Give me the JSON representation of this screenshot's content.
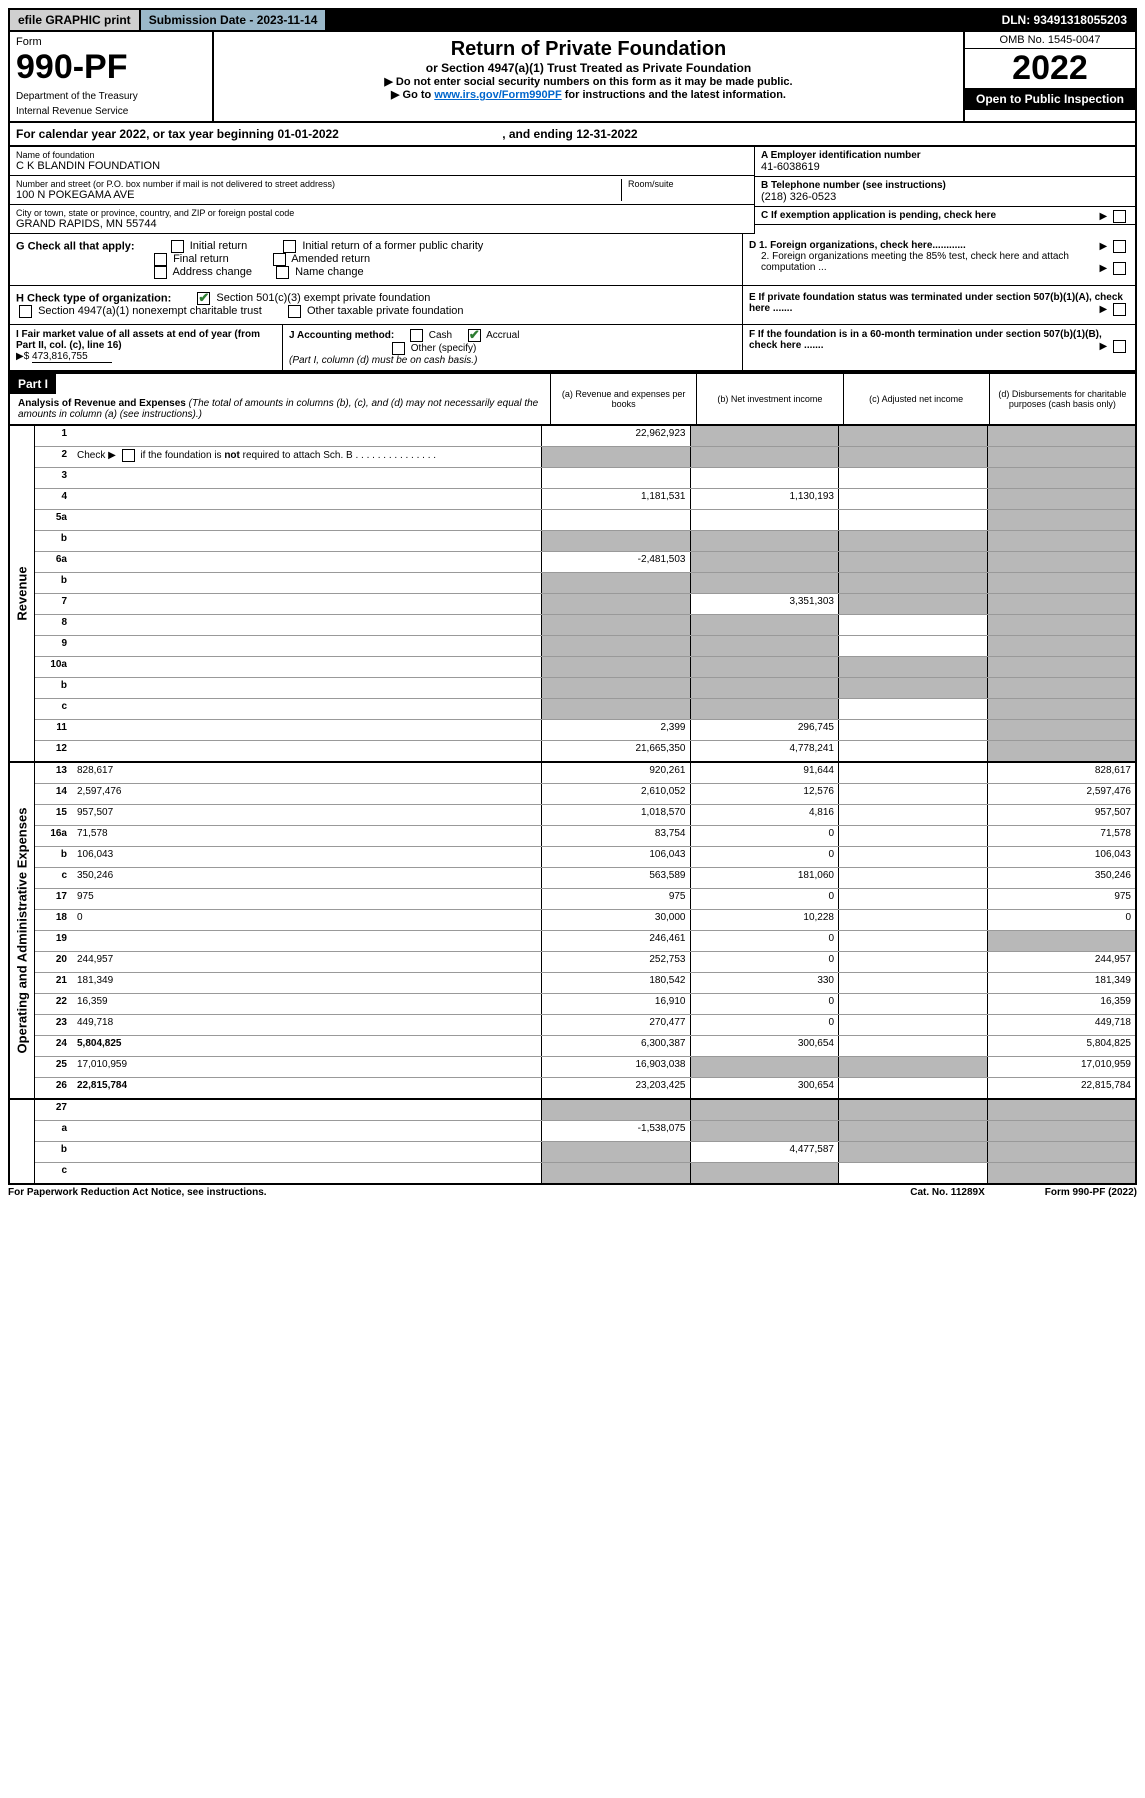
{
  "top": {
    "efile": "efile GRAPHIC print",
    "submission": "Submission Date - 2023-11-14",
    "dln": "DLN: 93491318055203"
  },
  "header": {
    "form_label": "Form",
    "form_number": "990-PF",
    "dept1": "Department of the Treasury",
    "dept2": "Internal Revenue Service",
    "title": "Return of Private Foundation",
    "subtitle": "or Section 4947(a)(1) Trust Treated as Private Foundation",
    "note1": "▶ Do not enter social security numbers on this form as it may be made public.",
    "note2_pre": "▶ Go to ",
    "note2_link": "www.irs.gov/Form990PF",
    "note2_post": " for instructions and the latest information.",
    "omb": "OMB No. 1545-0047",
    "year": "2022",
    "open": "Open to Public Inspection"
  },
  "calendar": {
    "text_pre": "For calendar year 2022, or tax year beginning ",
    "begin": "01-01-2022",
    "text_mid": " , and ending ",
    "end": "12-31-2022"
  },
  "info": {
    "name_label": "Name of foundation",
    "name": "C K BLANDIN FOUNDATION",
    "addr_label": "Number and street (or P.O. box number if mail is not delivered to street address)",
    "addr": "100 N POKEGAMA AVE",
    "room_label": "Room/suite",
    "city_label": "City or town, state or province, country, and ZIP or foreign postal code",
    "city": "GRAND RAPIDS, MN  55744",
    "ein_label": "A Employer identification number",
    "ein": "41-6038619",
    "tel_label": "B Telephone number (see instructions)",
    "tel": "(218) 326-0523",
    "c_label": "C If exemption application is pending, check here",
    "d1": "D 1. Foreign organizations, check here............",
    "d2": "2. Foreign organizations meeting the 85% test, check here and attach computation ...",
    "e_label": "E  If private foundation status was terminated under section 507(b)(1)(A), check here .......",
    "f_label": "F  If the foundation is in a 60-month termination under section 507(b)(1)(B), check here ......."
  },
  "checks": {
    "g_label": "G Check all that apply:",
    "g_opts": [
      "Initial return",
      "Initial return of a former public charity",
      "Final return",
      "Amended return",
      "Address change",
      "Name change"
    ],
    "h_label": "H Check type of organization:",
    "h1": "Section 501(c)(3) exempt private foundation",
    "h2": "Section 4947(a)(1) nonexempt charitable trust",
    "h3": "Other taxable private foundation",
    "i_label": "I Fair market value of all assets at end of year (from Part II, col. (c), line 16)",
    "i_value": "473,816,755",
    "j_label": "J Accounting method:",
    "j_cash": "Cash",
    "j_accrual": "Accrual",
    "j_other": "Other (specify)",
    "j_note": "(Part I, column (d) must be on cash basis.)"
  },
  "part1": {
    "label": "Part I",
    "title": "Analysis of Revenue and Expenses",
    "title_note": "(The total of amounts in columns (b), (c), and (d) may not necessarily equal the amounts in column (a) (see instructions).)",
    "cols": {
      "a": "(a)    Revenue and expenses per books",
      "b": "(b)   Net investment income",
      "c": "(c)   Adjusted net income",
      "d": "(d)  Disbursements for charitable purposes (cash basis only)"
    }
  },
  "revenue_label": "Revenue",
  "expenses_label": "Operating and Administrative Expenses",
  "rows": [
    {
      "n": "1",
      "d": "",
      "a": "22,962,923",
      "b": "",
      "c": "",
      "sb": true,
      "sc": true,
      "sd": true
    },
    {
      "n": "2",
      "d": "",
      "a": "",
      "b": "",
      "c": "",
      "sa": true,
      "sb": true,
      "sc": true,
      "sd": true,
      "html": true
    },
    {
      "n": "3",
      "d": "",
      "a": "",
      "b": "",
      "c": "",
      "sd": true
    },
    {
      "n": "4",
      "d": "",
      "a": "1,181,531",
      "b": "1,130,193",
      "c": "",
      "sd": true
    },
    {
      "n": "5a",
      "d": "",
      "a": "",
      "b": "",
      "c": "",
      "sd": true
    },
    {
      "n": "b",
      "d": "",
      "a": "",
      "b": "",
      "c": "",
      "sa": true,
      "sb": true,
      "sc": true,
      "sd": true
    },
    {
      "n": "6a",
      "d": "",
      "a": "-2,481,503",
      "b": "",
      "c": "",
      "sb": true,
      "sc": true,
      "sd": true
    },
    {
      "n": "b",
      "d": "",
      "a": "",
      "b": "",
      "c": "",
      "sa": true,
      "sb": true,
      "sc": true,
      "sd": true
    },
    {
      "n": "7",
      "d": "",
      "a": "",
      "b": "3,351,303",
      "c": "",
      "sa": true,
      "sc": true,
      "sd": true
    },
    {
      "n": "8",
      "d": "",
      "a": "",
      "b": "",
      "c": "",
      "sa": true,
      "sb": true,
      "sd": true
    },
    {
      "n": "9",
      "d": "",
      "a": "",
      "b": "",
      "c": "",
      "sa": true,
      "sb": true,
      "sd": true
    },
    {
      "n": "10a",
      "d": "",
      "a": "",
      "b": "",
      "c": "",
      "sa": true,
      "sb": true,
      "sc": true,
      "sd": true
    },
    {
      "n": "b",
      "d": "",
      "a": "",
      "b": "",
      "c": "",
      "sa": true,
      "sb": true,
      "sc": true,
      "sd": true
    },
    {
      "n": "c",
      "d": "",
      "a": "",
      "b": "",
      "c": "",
      "sa": true,
      "sb": true,
      "sd": true
    },
    {
      "n": "11",
      "d": "",
      "a": "2,399",
      "b": "296,745",
      "c": "",
      "sd": true
    },
    {
      "n": "12",
      "d": "",
      "a": "21,665,350",
      "b": "4,778,241",
      "c": "",
      "bold": true,
      "sd": true
    }
  ],
  "exp_rows": [
    {
      "n": "13",
      "d": "828,617",
      "a": "920,261",
      "b": "91,644",
      "c": ""
    },
    {
      "n": "14",
      "d": "2,597,476",
      "a": "2,610,052",
      "b": "12,576",
      "c": ""
    },
    {
      "n": "15",
      "d": "957,507",
      "a": "1,018,570",
      "b": "4,816",
      "c": ""
    },
    {
      "n": "16a",
      "d": "71,578",
      "a": "83,754",
      "b": "0",
      "c": ""
    },
    {
      "n": "b",
      "d": "106,043",
      "a": "106,043",
      "b": "0",
      "c": ""
    },
    {
      "n": "c",
      "d": "350,246",
      "a": "563,589",
      "b": "181,060",
      "c": ""
    },
    {
      "n": "17",
      "d": "975",
      "a": "975",
      "b": "0",
      "c": ""
    },
    {
      "n": "18",
      "d": "0",
      "a": "30,000",
      "b": "10,228",
      "c": ""
    },
    {
      "n": "19",
      "d": "",
      "a": "246,461",
      "b": "0",
      "c": "",
      "sd": true
    },
    {
      "n": "20",
      "d": "244,957",
      "a": "252,753",
      "b": "0",
      "c": ""
    },
    {
      "n": "21",
      "d": "181,349",
      "a": "180,542",
      "b": "330",
      "c": ""
    },
    {
      "n": "22",
      "d": "16,359",
      "a": "16,910",
      "b": "0",
      "c": ""
    },
    {
      "n": "23",
      "d": "449,718",
      "a": "270,477",
      "b": "0",
      "c": ""
    },
    {
      "n": "24",
      "d": "5,804,825",
      "a": "6,300,387",
      "b": "300,654",
      "c": "",
      "bold": true
    },
    {
      "n": "25",
      "d": "17,010,959",
      "a": "16,903,038",
      "b": "",
      "c": "",
      "sb": true,
      "sc": true
    },
    {
      "n": "26",
      "d": "22,815,784",
      "a": "23,203,425",
      "b": "300,654",
      "c": "",
      "bold": true
    }
  ],
  "final_rows": [
    {
      "n": "27",
      "d": "",
      "a": "",
      "b": "",
      "c": "",
      "sa": true,
      "sb": true,
      "sc": true,
      "sd": true
    },
    {
      "n": "a",
      "d": "",
      "a": "-1,538,075",
      "b": "",
      "c": "",
      "bold": true,
      "sb": true,
      "sc": true,
      "sd": true
    },
    {
      "n": "b",
      "d": "",
      "a": "",
      "b": "4,477,587",
      "c": "",
      "bold": true,
      "sa": true,
      "sc": true,
      "sd": true
    },
    {
      "n": "c",
      "d": "",
      "a": "",
      "b": "",
      "c": "",
      "bold": true,
      "sa": true,
      "sb": true,
      "sd": true
    }
  ],
  "footer": {
    "left": "For Paperwork Reduction Act Notice, see instructions.",
    "mid": "Cat. No. 11289X",
    "right": "Form 990-PF (2022)"
  }
}
